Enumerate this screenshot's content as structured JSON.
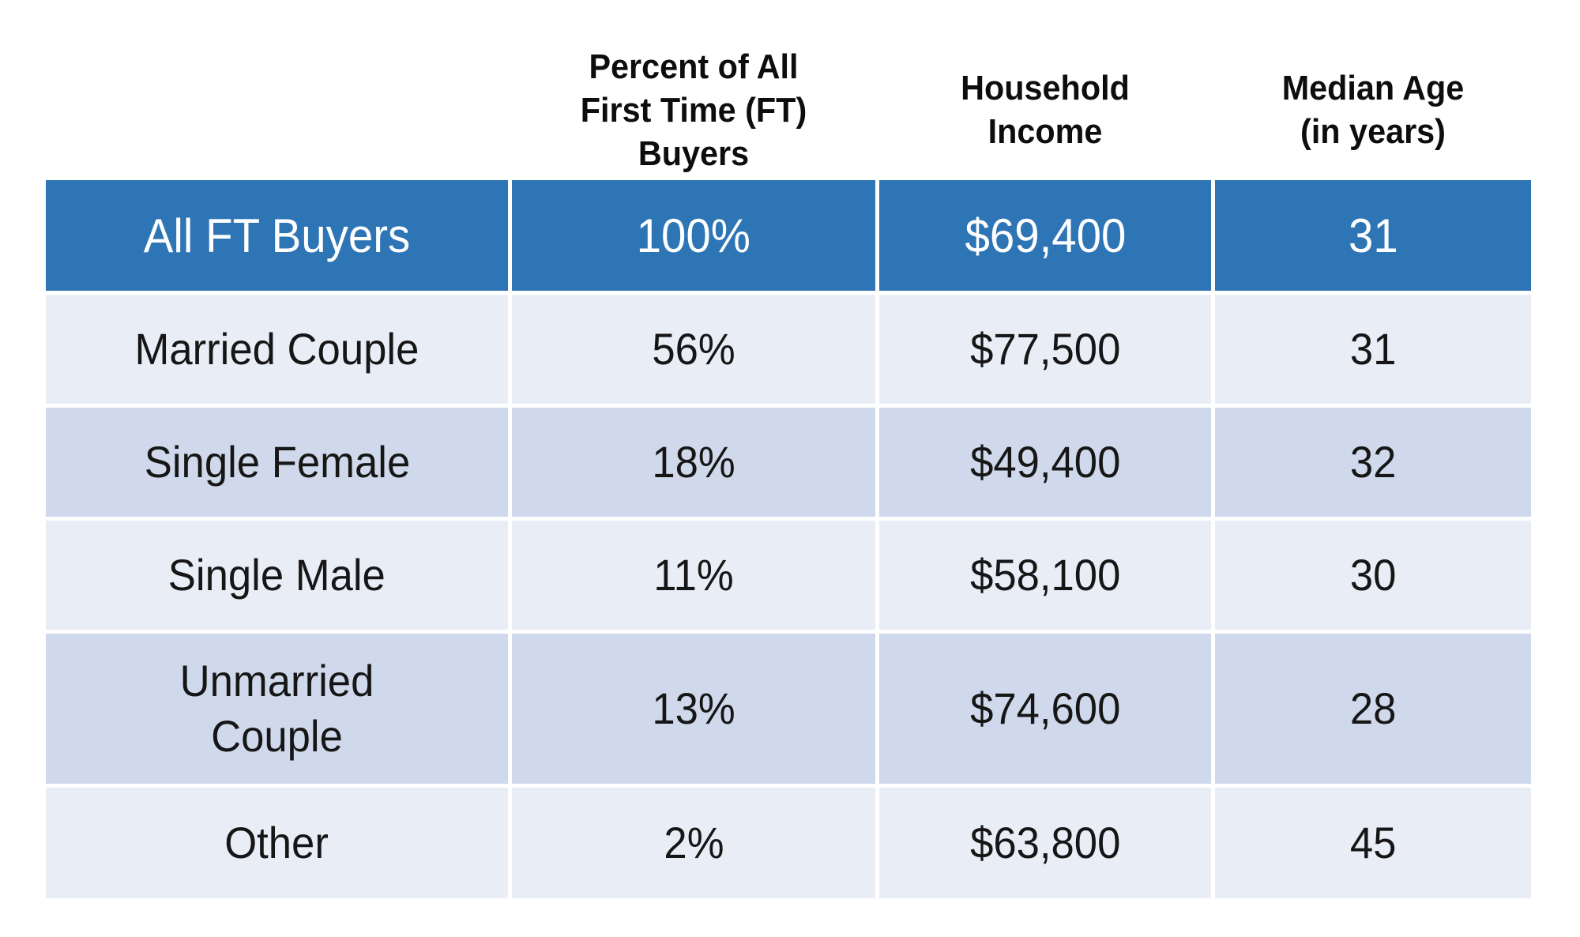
{
  "colors": {
    "header_row_bg": "#2E75B5",
    "header_row_text": "#ffffff",
    "band_light": "#E9EDF6",
    "band_medium": "#CFD9EB",
    "border": "#ffffff",
    "text": "#161616"
  },
  "table": {
    "columns": [
      {
        "label": ""
      },
      {
        "label": "Percent of All First Time (FT) Buyers"
      },
      {
        "label": "Household Income"
      },
      {
        "label": "Median Age (in years)"
      }
    ],
    "rows": [
      {
        "label": "All FT Buyers",
        "percent": "100%",
        "income": "$69,400",
        "age": "31"
      },
      {
        "label": "Married Couple",
        "percent": "56%",
        "income": "$77,500",
        "age": "31"
      },
      {
        "label": "Single Female",
        "percent": "18%",
        "income": "$49,400",
        "age": "32"
      },
      {
        "label": "Single Male",
        "percent": "11%",
        "income": "$58,100",
        "age": "30"
      },
      {
        "label": "Unmarried Couple",
        "percent": "13%",
        "income": "$74,600",
        "age": "28"
      },
      {
        "label": "Other",
        "percent": "2%",
        "income": "$63,800",
        "age": "45"
      }
    ]
  },
  "chart_data": {
    "type": "table",
    "title": "",
    "columns": [
      "",
      "Percent of All First Time (FT) Buyers",
      "Household Income",
      "Median Age (in years)"
    ],
    "rows": [
      [
        "All FT Buyers",
        "100%",
        "$69,400",
        31
      ],
      [
        "Married Couple",
        "56%",
        "$77,500",
        31
      ],
      [
        "Single Female",
        "18%",
        "$49,400",
        32
      ],
      [
        "Single Male",
        "11%",
        "$58,100",
        30
      ],
      [
        "Unmarried Couple",
        "13%",
        "$74,600",
        28
      ],
      [
        "Other",
        "2%",
        "$63,800",
        45
      ]
    ],
    "layout": {
      "highlight_row": "All FT Buyers",
      "banding": "alternating light/medium blue",
      "grid": "white 5px separators"
    }
  }
}
